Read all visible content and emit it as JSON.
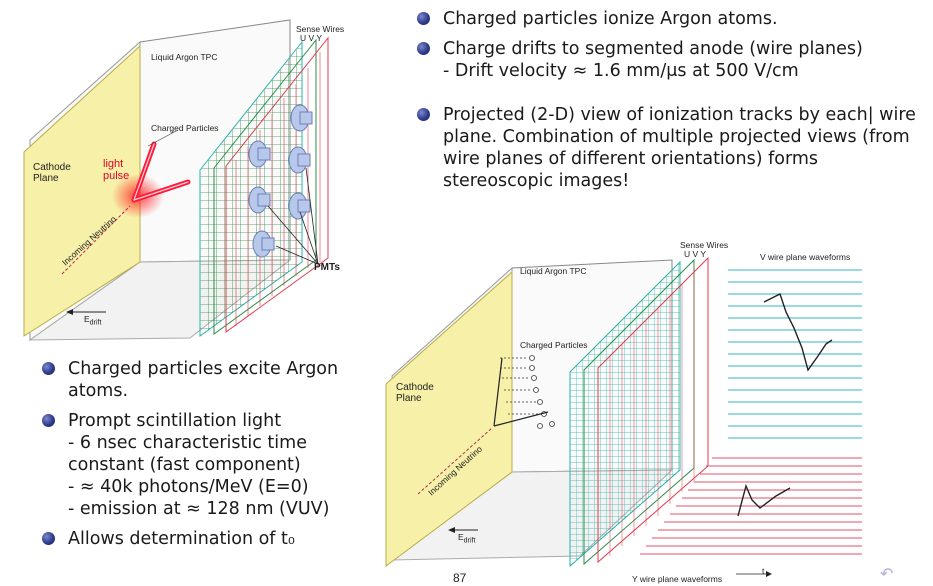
{
  "top_bullets": [
    {
      "main": "Charged particles ionize Argon atoms.",
      "sub": []
    },
    {
      "main": "Charge drifts to segmented anode (wire planes)",
      "sub": [
        "- Drift velocity ≈ 1.6 mm/μs at 500 V/cm"
      ]
    },
    {
      "main": "Projected (2-D) view of ionization tracks by each| wire plane. Combination of multiple projected views (from wire planes of different orientations) forms stereoscopic images!",
      "sub": []
    }
  ],
  "bottom_bullets": [
    {
      "main": "Charged particles excite Argon atoms.",
      "sub": []
    },
    {
      "main": "Prompt scintillation light",
      "sub": [
        "- 6 nsec characteristic time constant (fast component)",
        "- ≈ 40k photons/MeV (E=0)",
        "- emission at ≈ 128 nm (VUV)"
      ]
    },
    {
      "main": "Allows determination of t₀",
      "sub": []
    }
  ],
  "diagram_left": {
    "sense_wires": "Sense Wires",
    "uvy": "U  V  Y",
    "tpc": "Liquid Argon TPC",
    "charged_particles": "Charged Particles",
    "cathode": "Cathode Plane",
    "light_pulse": "light pulse",
    "neutrino": "Incoming Neutrino",
    "pmts": "PMTs",
    "edrift": "E",
    "edrift_sub": "drift"
  },
  "diagram_right": {
    "sense_wires": "Sense Wires",
    "uvy": "U  V  Y",
    "tpc": "Liquid Argon TPC",
    "v_waveforms": "V wire plane waveforms",
    "charged_particles": "Charged Particles",
    "cathode": "Cathode Plane",
    "neutrino": "Incoming Neutrino",
    "edrift": "E",
    "edrift_sub": "drift",
    "y_waveforms": "Y wire plane waveforms",
    "t_axis": "t"
  },
  "page_number": "87",
  "colors": {
    "bullet": "#2e3a8c",
    "cathode": "#f7f0a8",
    "wire_u": "#2bb3a8",
    "wire_v": "#2c8f4a",
    "wire_y": "#e23b4c",
    "pmt": "#b8c8ea",
    "waveform_v": "#35b5c4",
    "waveform_y": "#e0506a"
  }
}
